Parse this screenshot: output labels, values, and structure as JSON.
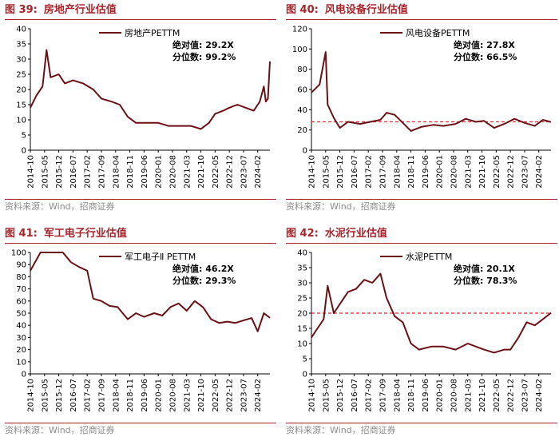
{
  "colors": {
    "accent": "#a8242b",
    "series": "#6b1115",
    "refline": "#e8262d",
    "source": "#8c8c8c"
  },
  "chart_data": [
    {
      "type": "line",
      "figure_no": "图 39:",
      "title": "房地产行业估值",
      "series_name": "房地产PETTM",
      "ylim": [
        0,
        40
      ],
      "yticks": [
        0,
        5,
        10,
        15,
        20,
        25,
        30,
        35,
        40
      ],
      "xticks": [
        "2014-10",
        "2015-05",
        "2015-12",
        "2016-07",
        "2017-02",
        "2017-09",
        "2018-04",
        "2018-11",
        "2019-06",
        "2020-01",
        "2020-08",
        "2021-03",
        "2021-10",
        "2022-05",
        "2022-12",
        "2023-07",
        "2024-02"
      ],
      "annot_abs": "绝对值: 29.2X",
      "annot_pct": "分位数: 99.2%",
      "refline": null,
      "x": [
        "2014-10",
        "2015-01",
        "2015-04",
        "2015-06",
        "2015-08",
        "2015-12",
        "2016-03",
        "2016-07",
        "2016-12",
        "2017-05",
        "2017-09",
        "2018-02",
        "2018-06",
        "2018-10",
        "2019-02",
        "2019-08",
        "2020-01",
        "2020-06",
        "2020-12",
        "2021-05",
        "2021-10",
        "2022-02",
        "2022-05",
        "2022-09",
        "2022-12",
        "2023-04",
        "2023-08",
        "2023-12",
        "2024-03",
        "2024-05",
        "2024-06",
        "2024-07",
        "2024-08"
      ],
      "y": [
        14,
        18,
        21,
        33,
        24,
        25,
        22,
        23,
        22,
        20,
        17,
        16,
        15,
        11,
        9,
        9,
        9,
        8,
        8,
        8,
        7,
        9,
        12,
        13,
        14,
        15,
        14,
        13,
        16,
        21,
        16,
        17,
        29.2
      ],
      "source": "资料来源：Wind，招商证券"
    },
    {
      "type": "line",
      "figure_no": "图 40:",
      "title": "风电设备行业估值",
      "series_name": "风电设备PETTM",
      "ylim": [
        0,
        120
      ],
      "yticks": [
        0,
        20,
        40,
        60,
        80,
        100,
        120
      ],
      "xticks": [
        "2014-10",
        "2015-05",
        "2015-12",
        "2016-07",
        "2017-02",
        "2017-09",
        "2018-04",
        "2018-11",
        "2019-06",
        "2020-01",
        "2020-08",
        "2021-03",
        "2021-10",
        "2022-05",
        "2022-12",
        "2023-07",
        "2024-02"
      ],
      "annot_abs": "绝对值: 27.8X",
      "annot_pct": "分位数: 66.5%",
      "refline": 28,
      "x": [
        "2014-10",
        "2015-02",
        "2015-05",
        "2015-06",
        "2015-09",
        "2015-12",
        "2016-04",
        "2016-10",
        "2017-03",
        "2017-08",
        "2017-11",
        "2018-03",
        "2018-07",
        "2018-11",
        "2019-04",
        "2019-10",
        "2020-03",
        "2020-09",
        "2021-02",
        "2021-07",
        "2021-11",
        "2022-04",
        "2022-09",
        "2023-02",
        "2023-07",
        "2023-12",
        "2024-04",
        "2024-08"
      ],
      "y": [
        57,
        65,
        97,
        45,
        32,
        22,
        28,
        26,
        28,
        30,
        37,
        35,
        27,
        19,
        23,
        25,
        24,
        26,
        31,
        28,
        29,
        22,
        26,
        31,
        27,
        24,
        30,
        27.8
      ],
      "source": "资料来源：Wind，招商证券"
    },
    {
      "type": "line",
      "figure_no": "图 41:",
      "title": "军工电子行业估值",
      "series_name": "军工电子Ⅱ PETTM",
      "ylim": [
        0,
        100
      ],
      "yticks": [
        0,
        10,
        20,
        30,
        40,
        50,
        60,
        70,
        80,
        90,
        100
      ],
      "xticks": [
        "2014-10",
        "2015-05",
        "2015-12",
        "2016-07",
        "2017-02",
        "2017-09",
        "2018-04",
        "2018-11",
        "2019-06",
        "2020-01",
        "2020-08",
        "2021-03",
        "2021-10",
        "2022-05",
        "2022-12",
        "2023-07",
        "2024-02"
      ],
      "annot_abs": "绝对值: 46.2X",
      "annot_pct": "分位数: 29.3%",
      "refline": null,
      "x": [
        "2014-10",
        "2015-03",
        "2015-06",
        "2015-10",
        "2016-02",
        "2016-06",
        "2016-10",
        "2017-02",
        "2017-05",
        "2017-09",
        "2018-01",
        "2018-05",
        "2018-10",
        "2019-02",
        "2019-06",
        "2019-11",
        "2020-03",
        "2020-07",
        "2020-11",
        "2021-03",
        "2021-07",
        "2021-11",
        "2022-03",
        "2022-07",
        "2022-11",
        "2023-03",
        "2023-07",
        "2023-11",
        "2024-02",
        "2024-05",
        "2024-08"
      ],
      "y": [
        85,
        100,
        100,
        100,
        100,
        92,
        88,
        85,
        62,
        60,
        56,
        55,
        45,
        50,
        47,
        50,
        48,
        55,
        58,
        52,
        60,
        55,
        45,
        42,
        43,
        42,
        44,
        46,
        35,
        50,
        46.2
      ],
      "source": "资料来源：Wind，招商证券"
    },
    {
      "type": "line",
      "figure_no": "图 42:",
      "title": "水泥行业估值",
      "series_name": "水泥PETTM",
      "ylim": [
        0,
        40
      ],
      "yticks": [
        0,
        5,
        10,
        15,
        20,
        25,
        30,
        35,
        40
      ],
      "xticks": [
        "2014-10",
        "2015-05",
        "2015-12",
        "2016-07",
        "2017-02",
        "2017-09",
        "2018-04",
        "2018-11",
        "2019-06",
        "2020-01",
        "2020-08",
        "2021-03",
        "2021-10",
        "2022-05",
        "2022-12",
        "2023-07",
        "2024-02"
      ],
      "annot_abs": "绝对值: 20.1X",
      "annot_pct": "分位数: 78.3%",
      "refline": 20,
      "x": [
        "2014-10",
        "2015-01",
        "2015-04",
        "2015-06",
        "2015-09",
        "2015-12",
        "2016-04",
        "2016-08",
        "2016-12",
        "2017-04",
        "2017-08",
        "2017-11",
        "2018-03",
        "2018-07",
        "2018-11",
        "2019-03",
        "2019-09",
        "2020-03",
        "2020-09",
        "2021-03",
        "2021-07",
        "2021-11",
        "2022-04",
        "2022-09",
        "2022-12",
        "2023-04",
        "2023-08",
        "2023-12",
        "2024-04",
        "2024-08"
      ],
      "y": [
        12,
        15,
        18,
        29,
        20,
        23,
        27,
        28,
        31,
        30,
        33,
        25,
        19,
        17,
        10,
        8,
        9,
        9,
        8,
        10,
        9,
        8,
        7,
        8,
        8,
        12,
        17,
        16,
        18,
        20.1
      ],
      "source": "资料来源：Wind，招商证券"
    }
  ]
}
